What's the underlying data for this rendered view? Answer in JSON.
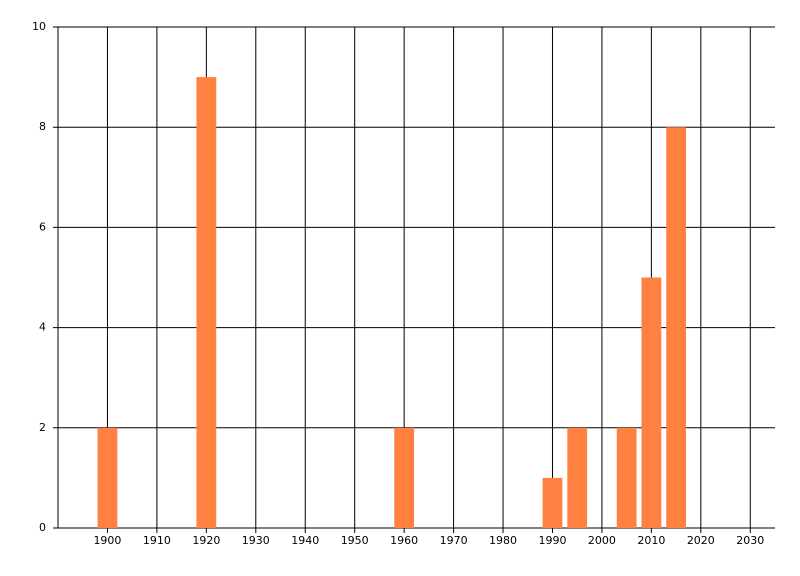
{
  "chart_data": {
    "type": "bar",
    "x": [
      1900,
      1920,
      1960,
      1990,
      1995,
      2005,
      2010,
      2015
    ],
    "values": [
      2,
      9,
      2,
      1,
      2,
      2,
      5,
      8
    ],
    "color": "#ff8040",
    "xlim": [
      1890,
      2035
    ],
    "xticks": [
      1900,
      1910,
      1920,
      1930,
      1940,
      1950,
      1960,
      1970,
      1980,
      1990,
      2000,
      2010,
      2020,
      2030
    ],
    "ylim": [
      0,
      10
    ],
    "yticks": [
      0,
      2,
      4,
      6,
      8,
      10
    ],
    "grid": true
  }
}
